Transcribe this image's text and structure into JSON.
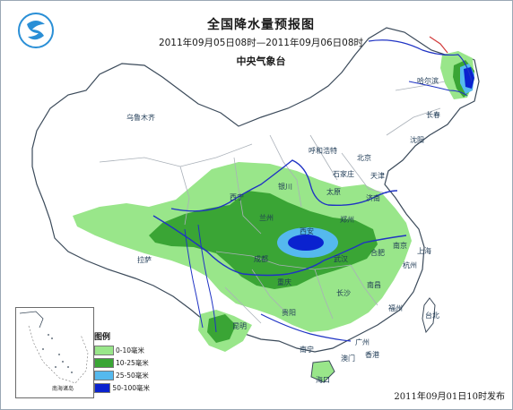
{
  "title": "全国降水量预报图",
  "subtitle": "2011年09月05日08时—2011年09月06日08时",
  "agency": "中央气象台",
  "issue_time": "2011年09月01日10时发布",
  "legend": {
    "title": "图例",
    "items": [
      {
        "label": "0-10毫米",
        "color": "#99e68a"
      },
      {
        "label": "10-25毫米",
        "color": "#3aa535"
      },
      {
        "label": "25-50毫米",
        "color": "#55b9ee"
      },
      {
        "label": "50-100毫米",
        "color": "#0a22cf"
      }
    ]
  },
  "inset_label": "南海诸岛",
  "colors": {
    "land": "#ffffff",
    "province_border": "#a9b0b8",
    "coast": "#3b4a5a",
    "river": "#1f33c4",
    "sea": "#ffffff"
  },
  "cities": [
    {
      "name": "哈尔滨"
    },
    {
      "name": "长春"
    },
    {
      "name": "沈阳"
    },
    {
      "name": "乌鲁木齐"
    },
    {
      "name": "呼和浩特"
    },
    {
      "name": "北京"
    },
    {
      "name": "石家庄"
    },
    {
      "name": "天津"
    },
    {
      "name": "银川"
    },
    {
      "name": "太原"
    },
    {
      "name": "济南"
    },
    {
      "name": "西宁"
    },
    {
      "name": "兰州"
    },
    {
      "name": "郑州"
    },
    {
      "name": "西安"
    },
    {
      "name": "南京"
    },
    {
      "name": "合肥"
    },
    {
      "name": "上海"
    },
    {
      "name": "拉萨"
    },
    {
      "name": "成都"
    },
    {
      "name": "武汉"
    },
    {
      "name": "杭州"
    },
    {
      "name": "重庆"
    },
    {
      "name": "长沙"
    },
    {
      "name": "南昌"
    },
    {
      "name": "福州"
    },
    {
      "name": "贵阳"
    },
    {
      "name": "台北"
    },
    {
      "name": "昆明"
    },
    {
      "name": "广州"
    },
    {
      "name": "南宁"
    },
    {
      "name": "香港"
    },
    {
      "name": "澳门"
    },
    {
      "name": "海口"
    }
  ]
}
